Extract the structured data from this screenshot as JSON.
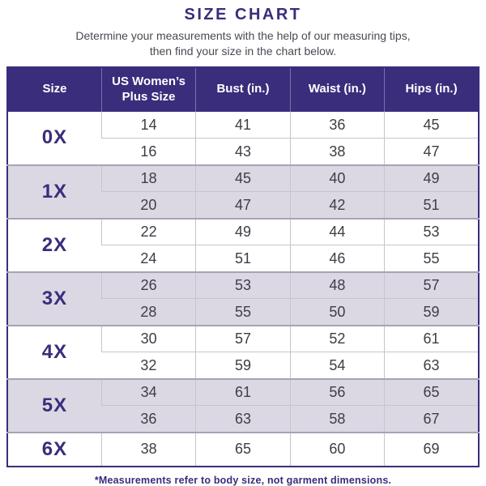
{
  "title": "SIZE CHART",
  "subtitle_line1": "Determine your measurements with the help of our measuring tips,",
  "subtitle_line2": "then find your size in the chart below.",
  "footnote": "*Measurements refer to body size, not garment dimensions.",
  "colors": {
    "accent": "#3a2d7c",
    "header_bg": "#3a2d7c",
    "header_text": "#ffffff",
    "shaded_row_bg": "#dbd8e4",
    "plain_row_bg": "#ffffff",
    "data_text": "#3e3d45",
    "grid_line": "#c6c4cc",
    "group_separator": "#a7a3b4"
  },
  "chart_data": {
    "type": "table",
    "title": "SIZE CHART",
    "columns": [
      "Size",
      "US Women’s Plus Size",
      "Bust (in.)",
      "Waist (in.)",
      "Hips (in.)"
    ],
    "groups": [
      {
        "size": "0X",
        "shaded": false,
        "rows": [
          [
            "14",
            "41",
            "36",
            "45"
          ],
          [
            "16",
            "43",
            "38",
            "47"
          ]
        ]
      },
      {
        "size": "1X",
        "shaded": true,
        "rows": [
          [
            "18",
            "45",
            "40",
            "49"
          ],
          [
            "20",
            "47",
            "42",
            "51"
          ]
        ]
      },
      {
        "size": "2X",
        "shaded": false,
        "rows": [
          [
            "22",
            "49",
            "44",
            "53"
          ],
          [
            "24",
            "51",
            "46",
            "55"
          ]
        ]
      },
      {
        "size": "3X",
        "shaded": true,
        "rows": [
          [
            "26",
            "53",
            "48",
            "57"
          ],
          [
            "28",
            "55",
            "50",
            "59"
          ]
        ]
      },
      {
        "size": "4X",
        "shaded": false,
        "rows": [
          [
            "30",
            "57",
            "52",
            "61"
          ],
          [
            "32",
            "59",
            "54",
            "63"
          ]
        ]
      },
      {
        "size": "5X",
        "shaded": true,
        "rows": [
          [
            "34",
            "61",
            "56",
            "65"
          ],
          [
            "36",
            "63",
            "58",
            "67"
          ]
        ]
      },
      {
        "size": "6X",
        "shaded": false,
        "rows": [
          [
            "38",
            "65",
            "60",
            "69"
          ]
        ]
      }
    ]
  }
}
